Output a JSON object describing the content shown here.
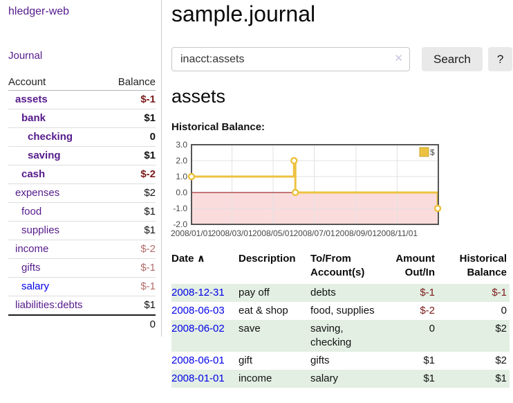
{
  "app": {
    "title": "hledger-web"
  },
  "colors": {
    "link_purple": "#551a8b",
    "link_blue": "#0000e8",
    "negative_strong": "#7b1a1a",
    "negative_soft": "#b36b6b",
    "row_green": "#e3efe3",
    "button_bg": "#e9e9e9",
    "row_line": "#dddddd",
    "sidebar_divider": "#cccccc",
    "clear_icon_color": "#cdc4e4"
  },
  "sidebar": {
    "nav_journal": "Journal",
    "table": {
      "account_header": "Account",
      "balance_header": "Balance",
      "rows": [
        {
          "name": "assets",
          "level": 0,
          "bold": true,
          "balance": "$-1",
          "balance_class": "neg-strong",
          "blue": false
        },
        {
          "name": "bank",
          "level": 1,
          "bold": true,
          "balance": "$1",
          "balance_class": "",
          "blue": false
        },
        {
          "name": "checking",
          "level": 2,
          "bold": true,
          "balance": "0",
          "balance_class": "",
          "blue": false
        },
        {
          "name": "saving",
          "level": 2,
          "bold": true,
          "balance": "$1",
          "balance_class": "",
          "blue": false
        },
        {
          "name": "cash",
          "level": 1,
          "bold": true,
          "balance": "$-2",
          "balance_class": "neg-strong",
          "blue": false
        },
        {
          "name": "expenses",
          "level": 0,
          "bold": false,
          "balance": "$2",
          "balance_class": "",
          "blue": false
        },
        {
          "name": "food",
          "level": 1,
          "bold": false,
          "balance": "$1",
          "balance_class": "",
          "blue": false
        },
        {
          "name": "supplies",
          "level": 1,
          "bold": false,
          "balance": "$1",
          "balance_class": "",
          "blue": false
        },
        {
          "name": "income",
          "level": 0,
          "bold": false,
          "balance": "$-2",
          "balance_class": "neg-soft",
          "blue": false
        },
        {
          "name": "gifts",
          "level": 1,
          "bold": false,
          "balance": "$-1",
          "balance_class": "neg-soft",
          "blue": false
        },
        {
          "name": "salary",
          "level": 1,
          "bold": false,
          "balance": "$-1",
          "balance_class": "neg-soft",
          "blue": true
        },
        {
          "name": "liabilities:debts",
          "level": 0,
          "bold": false,
          "balance": "$1",
          "balance_class": "",
          "blue": false
        }
      ],
      "total": "0"
    }
  },
  "main": {
    "title": "sample.journal",
    "search": {
      "value": "inacct:assets",
      "clear_icon": "✕",
      "search_button": "Search",
      "help_button": "?"
    },
    "account_heading": "assets",
    "chart_label": "Historical Balance:"
  },
  "chart_data": {
    "type": "line",
    "step": true,
    "title": "Historical Balance of assets",
    "series": [
      {
        "name": "$",
        "color": "#edc240",
        "marker_fill": "#ffffff",
        "points": [
          [
            "2008-01-01",
            1
          ],
          [
            "2008-06-01",
            2
          ],
          [
            "2008-06-03",
            0
          ],
          [
            "2008-12-31",
            -1
          ]
        ]
      }
    ],
    "ylim": [
      -2,
      3
    ],
    "yticks": [
      "3.0",
      "2.0",
      "1.0",
      "0.0",
      "-1.0",
      "-2.0"
    ],
    "ytick_values": [
      3,
      2,
      1,
      0,
      -1,
      -2
    ],
    "xticks": [
      "2008/01/01",
      "2008/03/01",
      "2008/05/01",
      "2008/07/01",
      "2008/09/01",
      "2008/11/01"
    ],
    "x_start": "2008-01-01",
    "x_span_days": 366,
    "grid": true,
    "grid_color": "#e2e2e2",
    "border_color": "#545454",
    "negative_region_color": "#fbdcdc",
    "zero_line_color": "#8b0000",
    "legend": {
      "label": "$",
      "position": "top-right",
      "swatch_color": "#edc240",
      "swatch_border": "#c8a535"
    }
  },
  "register": {
    "headers": {
      "date": "Date",
      "sort_icon": "∧",
      "description": "Description",
      "tofrom": "To/From Account(s)",
      "amount": "Amount Out/In",
      "balance": "Historical Balance"
    },
    "rows": [
      {
        "date": "2008-12-31",
        "description": "pay off",
        "accounts": "debts",
        "amount": "$-1",
        "amount_neg": true,
        "balance": "$-1",
        "balance_neg": true
      },
      {
        "date": "2008-06-03",
        "description": "eat & shop",
        "accounts": "food, supplies",
        "amount": "$-2",
        "amount_neg": true,
        "balance": "0",
        "balance_neg": false
      },
      {
        "date": "2008-06-02",
        "description": "save",
        "accounts": "saving, checking",
        "amount": "0",
        "amount_neg": false,
        "balance": "$2",
        "balance_neg": false
      },
      {
        "date": "2008-06-01",
        "description": "gift",
        "accounts": "gifts",
        "amount": "$1",
        "amount_neg": false,
        "balance": "$2",
        "balance_neg": false
      },
      {
        "date": "2008-01-01",
        "description": "income",
        "accounts": "salary",
        "amount": "$1",
        "amount_neg": false,
        "balance": "$1",
        "balance_neg": false
      }
    ]
  }
}
